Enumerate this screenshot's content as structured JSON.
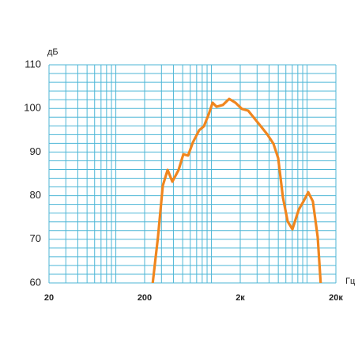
{
  "chart_data": {
    "type": "line",
    "y_label": "дБ",
    "x_label": "Гц",
    "xlim": [
      20,
      20000
    ],
    "xlog": true,
    "xticks": [
      20,
      200,
      {
        "value": 2000,
        "label": "2к"
      },
      {
        "value": 20000,
        "label": "20к"
      }
    ],
    "ylim": [
      60,
      110
    ],
    "yticks": [
      60,
      70,
      80,
      90,
      100,
      110
    ],
    "grid": true,
    "grid_color": "#4db6d6",
    "xgrid": [
      20,
      30,
      40,
      50,
      60,
      70,
      80,
      90,
      100,
      200,
      300,
      400,
      500,
      600,
      700,
      800,
      900,
      1000,
      2000,
      3000,
      4000,
      5000,
      6000,
      7000,
      8000,
      9000,
      10000,
      20000
    ],
    "ygrid": [
      60,
      62,
      64,
      66,
      68,
      70,
      72,
      74,
      76,
      78,
      80,
      82,
      84,
      86,
      88,
      90,
      92,
      94,
      96,
      98,
      100,
      102,
      104,
      106,
      108,
      110
    ],
    "series": [
      {
        "color": "#f0861e",
        "x": [
          242,
          276,
          310,
          348,
          390,
          453,
          508,
          570,
          638,
          744,
          834,
          934,
          1028,
          1130,
          1316,
          1532,
          1784,
          2080,
          2421,
          2818,
          3280,
          3819,
          4447,
          4988,
          5585,
          6266,
          7020,
          8180,
          9170,
          10280,
          11500,
          12900,
          13900
        ],
        "values": [
          59.6,
          70.5,
          82.3,
          85.9,
          83.2,
          85.9,
          89.5,
          89.2,
          92.2,
          95,
          95.9,
          98.6,
          101.3,
          100.4,
          100.8,
          102.2,
          101.3,
          99.9,
          99.5,
          97.7,
          95.9,
          94.1,
          91.9,
          88.6,
          79.6,
          74.1,
          72.3,
          76.8,
          78.7,
          80.8,
          78.7,
          70.5,
          59.6
        ]
      }
    ]
  }
}
